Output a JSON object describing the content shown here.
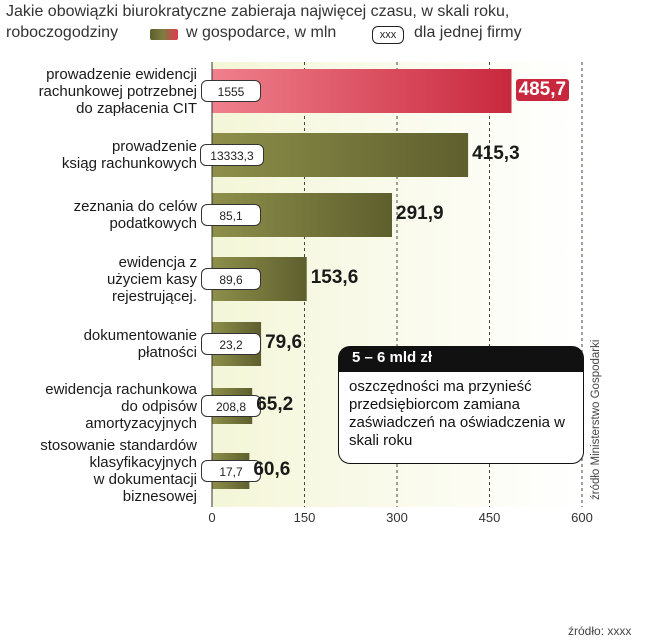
{
  "chart_data": {
    "type": "bar",
    "orientation": "horizontal",
    "title_line1": "Jakie obowiązki biurokratyczne zabieraja najwięcej czasu, w skali roku,",
    "title_line2": "roboczogodziny",
    "legend": {
      "series_label": "w gospodarce, w mln",
      "box_label": "xxx",
      "box_desc": "dla jednej firmy"
    },
    "categories": [
      [
        "prowadzenie ewidencji",
        "rachunkowej potrzebnej",
        "do zapłacenia CIT"
      ],
      [
        "prowadzenie",
        "ksiąg rachunkowych"
      ],
      [
        "zeznania do celów",
        "podatkowych"
      ],
      [
        "ewidencja z",
        "użyciem kasy",
        "rejestrującej."
      ],
      [
        "dokumentowanie",
        "płatności"
      ],
      [
        "ewidencja rachunkowa",
        "do  odpisów",
        "amortyzacyjnych"
      ],
      [
        "stosowanie standardów",
        "klasyfikacyjnych",
        "w  dokumentacji",
        "biznesowej"
      ]
    ],
    "values": [
      485.7,
      415.3,
      291.9,
      153.6,
      79.6,
      65.2,
      60.6
    ],
    "value_labels": [
      "485,7",
      "415,3",
      "291,9",
      "153,6",
      "79,6",
      "65,2",
      "60,6"
    ],
    "per_firm_labels": [
      "1555",
      "13333,3",
      "85,1",
      "89,6",
      "23,2",
      "208,8",
      "17,7"
    ],
    "xlim": [
      0,
      600
    ],
    "xticks": [
      0,
      150,
      300,
      450,
      600
    ],
    "grid": "vertical dashed",
    "highlight_index": 0,
    "colors": {
      "bar_dark": "#5e5f2e",
      "bar_light": "#8d8f4a",
      "highlight_dark": "#c8283e",
      "highlight_light": "#f0808c",
      "plot_bg_left": "#f4f6d8",
      "plot_bg_right": "#ffffff"
    }
  },
  "callout": {
    "head": "5 – 6 mld zł",
    "body": "oszczędności ma przynieść przedsiębiorcom zamiana zaświadczeń na oświadczenia w skali roku"
  },
  "source_vertical": "źródło Ministerstwo Gospodarki",
  "source_bottom": "źródło: xxxx"
}
